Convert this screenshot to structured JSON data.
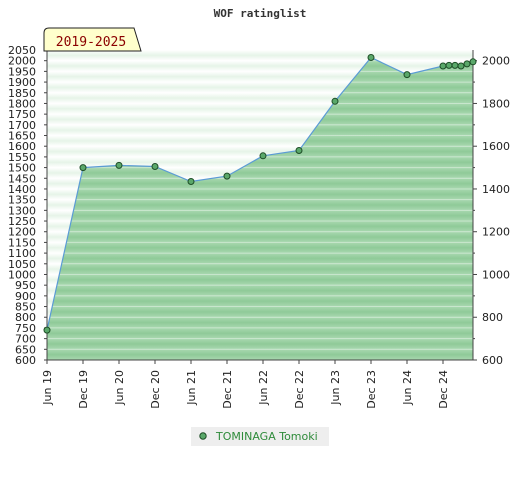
{
  "chart_data": {
    "type": "area",
    "title": "WOF ratinglist",
    "period_badge": "2019-2025",
    "xlabel": "",
    "ylabel": "",
    "x_ticks": [
      "Jun 19",
      "Dec 19",
      "Jun 20",
      "Dec 20",
      "Jun 21",
      "Dec 21",
      "Jun 22",
      "Dec 22",
      "Jun 23",
      "Dec 23",
      "Jun 24",
      "Dec 24"
    ],
    "y_left_ticks": [
      600,
      650,
      700,
      750,
      800,
      850,
      900,
      950,
      1000,
      1050,
      1100,
      1150,
      1200,
      1250,
      1300,
      1350,
      1400,
      1450,
      1500,
      1550,
      1600,
      1650,
      1700,
      1750,
      1800,
      1850,
      1900,
      1950,
      2000,
      2050
    ],
    "y_right_ticks": [
      600,
      800,
      1000,
      1200,
      1400,
      1600,
      1800,
      2000
    ],
    "ylim": [
      600,
      2050
    ],
    "xlim_months": [
      0,
      71
    ],
    "series": [
      {
        "name": "TOMINAGA Tomoki",
        "points": [
          {
            "x": "Jun 19",
            "m": 0,
            "y": 740
          },
          {
            "x": "Dec 19",
            "m": 6,
            "y": 1500
          },
          {
            "x": "Jun 20",
            "m": 12,
            "y": 1510
          },
          {
            "x": "Dec 20",
            "m": 18,
            "y": 1505
          },
          {
            "x": "Jun 21",
            "m": 24,
            "y": 1435
          },
          {
            "x": "Dec 21",
            "m": 30,
            "y": 1460
          },
          {
            "x": "Jun 22",
            "m": 36,
            "y": 1555
          },
          {
            "x": "Dec 22",
            "m": 42,
            "y": 1580
          },
          {
            "x": "Jun 23",
            "m": 48,
            "y": 1810
          },
          {
            "x": "Dec 23",
            "m": 54,
            "y": 2015
          },
          {
            "x": "Jun 24",
            "m": 60,
            "y": 1935
          },
          {
            "x": "Dec 24",
            "m": 66,
            "y": 1975
          },
          {
            "x": "Jan 25",
            "m": 67,
            "y": 1978
          },
          {
            "x": "Feb 25",
            "m": 68,
            "y": 1978
          },
          {
            "x": "Mar 25",
            "m": 69,
            "y": 1975
          },
          {
            "x": "Apr 25",
            "m": 70,
            "y": 1985
          },
          {
            "x": "May 25",
            "m": 71,
            "y": 1995
          }
        ]
      }
    ],
    "grid": true,
    "legend_position": "bottom-center",
    "colors": {
      "area_fill": "#8fca98",
      "band_light": "#e6f4e8",
      "line": "#5b9bd5",
      "marker_fill": "#5aa86a",
      "marker_stroke": "#1d4d26",
      "badge_bg": "#ffffcc",
      "badge_text": "#8b0000",
      "legend_text": "#2e8b3a",
      "legend_bg": "#eeeeee"
    }
  }
}
